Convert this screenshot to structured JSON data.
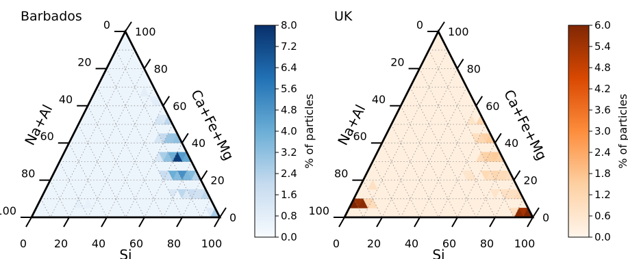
{
  "chart_data": [
    {
      "type": "heatmap",
      "title": "Barbados",
      "axes": {
        "bottom": "Si",
        "left": "Na+Al",
        "right": "Ca+Fe+Mg"
      },
      "ticks": [
        "0",
        "20",
        "40",
        "60",
        "80",
        "100"
      ],
      "colorbar": {
        "label": "% of particles",
        "range": [
          0,
          8
        ],
        "ticks": [
          "0.0",
          "0.8",
          "1.6",
          "2.4",
          "3.2",
          "4.0",
          "4.8",
          "5.6",
          "6.4",
          "7.2",
          "8.0"
        ],
        "colors": {
          "low": "#f7fbff",
          "mid1": "#c6dbef",
          "mid2": "#6baed6",
          "mid3": "#2171b5",
          "high": "#08306b"
        }
      },
      "background_value": 0.4,
      "cells": [
        {
          "si": 50,
          "na": 0,
          "up": true,
          "value": 2.2
        },
        {
          "si": 55,
          "na": 0,
          "up": false,
          "value": 3.0
        },
        {
          "si": 60,
          "na": 0,
          "up": true,
          "value": 3.2
        },
        {
          "si": 65,
          "na": 0,
          "up": false,
          "value": 4.6
        },
        {
          "si": 70,
          "na": 0,
          "up": true,
          "value": 4.2
        },
        {
          "si": 75,
          "na": 0,
          "up": false,
          "value": 3.4
        },
        {
          "si": 80,
          "na": 0,
          "up": true,
          "value": 2.4
        },
        {
          "si": 85,
          "na": 0,
          "up": false,
          "value": 1.6
        },
        {
          "si": 90,
          "na": 0,
          "up": true,
          "value": 2.2
        },
        {
          "si": 95,
          "na": 0,
          "up": false,
          "value": 1.0
        },
        {
          "si": 100,
          "na": 0,
          "up": true,
          "value": 2.6
        },
        {
          "si": 55,
          "na": 5,
          "up": true,
          "value": 3.0
        },
        {
          "si": 60,
          "na": 5,
          "up": false,
          "value": 4.0
        },
        {
          "si": 65,
          "na": 5,
          "up": true,
          "value": 7.6
        },
        {
          "si": 70,
          "na": 5,
          "up": false,
          "value": 5.0
        },
        {
          "si": 75,
          "na": 5,
          "up": true,
          "value": 3.6
        },
        {
          "si": 80,
          "na": 5,
          "up": false,
          "value": 1.8
        },
        {
          "si": 85,
          "na": 5,
          "up": true,
          "value": 1.6
        },
        {
          "si": 45,
          "na": 0,
          "up": false,
          "value": 1.2
        },
        {
          "si": 45,
          "na": 5,
          "up": true,
          "value": 1.4
        },
        {
          "si": 50,
          "na": 5,
          "up": false,
          "value": 2.0
        },
        {
          "si": 55,
          "na": 10,
          "up": false,
          "value": 2.6
        },
        {
          "si": 60,
          "na": 10,
          "up": true,
          "value": 3.2
        },
        {
          "si": 65,
          "na": 10,
          "up": false,
          "value": 4.0
        },
        {
          "si": 70,
          "na": 10,
          "up": true,
          "value": 3.4
        },
        {
          "si": 75,
          "na": 10,
          "up": false,
          "value": 2.2
        },
        {
          "si": 80,
          "na": 10,
          "up": true,
          "value": 1.2
        },
        {
          "si": 50,
          "na": 10,
          "up": true,
          "value": 1.4
        },
        {
          "si": 60,
          "na": 15,
          "up": false,
          "value": 1.8
        },
        {
          "si": 65,
          "na": 15,
          "up": true,
          "value": 1.6
        },
        {
          "si": 70,
          "na": 15,
          "up": false,
          "value": 1.2
        },
        {
          "si": 55,
          "na": 15,
          "up": true,
          "value": 1.2
        },
        {
          "si": 30,
          "na": 5,
          "up": true,
          "value": 0.8
        },
        {
          "si": 35,
          "na": 0,
          "up": false,
          "value": 0.8
        },
        {
          "si": 40,
          "na": 0,
          "up": true,
          "value": 0.9
        },
        {
          "si": 25,
          "na": 70,
          "up": true,
          "value": 0.7
        },
        {
          "si": 30,
          "na": 65,
          "up": true,
          "value": 0.6
        }
      ]
    },
    {
      "type": "heatmap",
      "title": "UK",
      "axes": {
        "bottom": "Si",
        "left": "Na+Al",
        "right": "Ca+Fe+Mg"
      },
      "ticks": [
        "0",
        "20",
        "40",
        "60",
        "80",
        "100"
      ],
      "colorbar": {
        "label": "% of particles",
        "range": [
          0,
          6
        ],
        "ticks": [
          "0.0",
          "0.6",
          "1.2",
          "1.8",
          "2.4",
          "3.0",
          "3.6",
          "4.2",
          "4.8",
          "5.4",
          "6.0"
        ],
        "colors": {
          "low": "#fff5eb",
          "mid1": "#fdd0a2",
          "mid2": "#fd8d3c",
          "mid3": "#d94801",
          "high": "#7f2704"
        }
      },
      "background_value": 0.25,
      "cells": [
        {
          "si": 5,
          "na": 90,
          "up": true,
          "value": 6.0
        },
        {
          "si": 5,
          "na": 85,
          "up": false,
          "value": 5.6
        },
        {
          "si": 10,
          "na": 85,
          "up": true,
          "value": 5.8
        },
        {
          "si": 95,
          "na": 0,
          "up": false,
          "value": 5.4
        },
        {
          "si": 100,
          "na": 0,
          "up": true,
          "value": 6.0
        },
        {
          "si": 95,
          "na": 5,
          "up": true,
          "value": 5.8
        },
        {
          "si": 50,
          "na": 0,
          "up": true,
          "value": 1.2
        },
        {
          "si": 55,
          "na": 0,
          "up": false,
          "value": 1.4
        },
        {
          "si": 60,
          "na": 0,
          "up": true,
          "value": 1.6
        },
        {
          "si": 65,
          "na": 0,
          "up": false,
          "value": 1.6
        },
        {
          "si": 70,
          "na": 0,
          "up": true,
          "value": 1.4
        },
        {
          "si": 75,
          "na": 0,
          "up": false,
          "value": 1.0
        },
        {
          "si": 80,
          "na": 0,
          "up": true,
          "value": 0.9
        },
        {
          "si": 85,
          "na": 0,
          "up": false,
          "value": 0.8
        },
        {
          "si": 90,
          "na": 0,
          "up": true,
          "value": 1.0
        },
        {
          "si": 55,
          "na": 5,
          "up": true,
          "value": 1.2
        },
        {
          "si": 60,
          "na": 5,
          "up": false,
          "value": 1.4
        },
        {
          "si": 65,
          "na": 5,
          "up": true,
          "value": 1.5
        },
        {
          "si": 70,
          "na": 5,
          "up": false,
          "value": 1.2
        },
        {
          "si": 75,
          "na": 5,
          "up": true,
          "value": 1.0
        },
        {
          "si": 80,
          "na": 5,
          "up": false,
          "value": 0.8
        },
        {
          "si": 60,
          "na": 10,
          "up": true,
          "value": 1.0
        },
        {
          "si": 65,
          "na": 10,
          "up": false,
          "value": 1.1
        },
        {
          "si": 70,
          "na": 10,
          "up": true,
          "value": 0.9
        },
        {
          "si": 50,
          "na": 5,
          "up": false,
          "value": 0.9
        },
        {
          "si": 45,
          "na": 5,
          "up": true,
          "value": 0.7
        },
        {
          "si": 85,
          "na": 5,
          "up": true,
          "value": 0.8
        },
        {
          "si": 90,
          "na": 5,
          "up": false,
          "value": 0.9
        },
        {
          "si": 10,
          "na": 80,
          "up": false,
          "value": 1.2
        },
        {
          "si": 15,
          "na": 80,
          "up": true,
          "value": 1.0
        },
        {
          "si": 10,
          "na": 75,
          "up": true,
          "value": 0.8
        },
        {
          "si": 60,
          "na": 20,
          "up": true,
          "value": 0.7
        },
        {
          "si": 55,
          "na": 20,
          "up": false,
          "value": 0.6
        },
        {
          "si": 75,
          "na": 10,
          "up": false,
          "value": 0.7
        }
      ]
    }
  ]
}
